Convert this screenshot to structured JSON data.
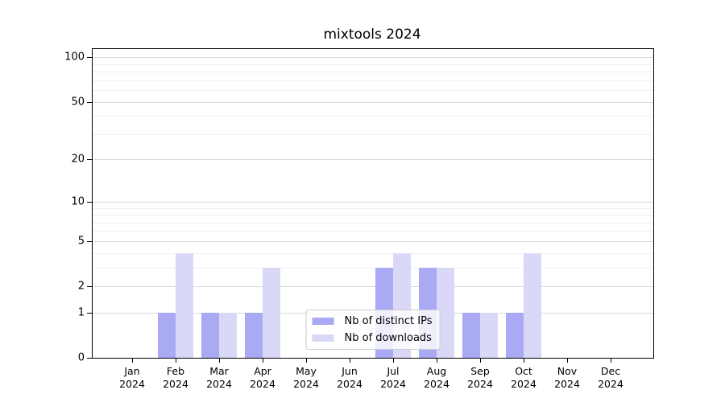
{
  "chart_data": {
    "type": "bar",
    "title": "mixtools 2024",
    "xlabel": "",
    "ylabel": "",
    "year": "2024",
    "months": [
      "Jan",
      "Feb",
      "Mar",
      "Apr",
      "May",
      "Jun",
      "Jul",
      "Aug",
      "Sep",
      "Oct",
      "Nov",
      "Dec"
    ],
    "series": [
      {
        "name": "Nb of distinct IPs",
        "color": "#a9a9f4",
        "values": [
          0,
          1,
          1,
          1,
          0,
          0,
          3,
          3,
          1,
          1,
          0,
          0
        ]
      },
      {
        "name": "Nb of downloads",
        "color": "#d9d9f7",
        "values": [
          0,
          4,
          1,
          3,
          0,
          0,
          4,
          3,
          1,
          4,
          0,
          0
        ]
      }
    ],
    "y_scale": "log1p",
    "ylim": [
      0,
      113.5
    ],
    "y_ticks": [
      0,
      1,
      2,
      5,
      10,
      20,
      50,
      100
    ],
    "y_minor_ticks": [
      3,
      4,
      6,
      7,
      8,
      9,
      30,
      40,
      60,
      70,
      80,
      90
    ],
    "grid": true,
    "legend_position": "lower center",
    "colors": {
      "major_gridline": "#d9d9d9",
      "minor_gridline": "#efefef",
      "spine": "#000000",
      "legend_border": "#cccccc"
    }
  }
}
